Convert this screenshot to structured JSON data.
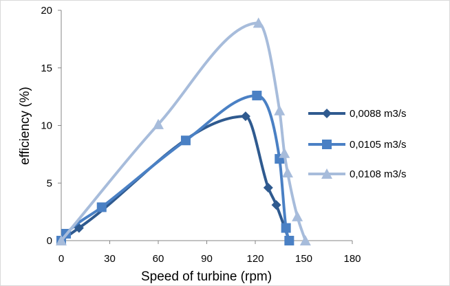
{
  "chart_data": {
    "type": "line",
    "title": "",
    "xlabel": "Speed of turbine  (rpm)",
    "ylabel": "efficiency (%)",
    "xlim": [
      0,
      180
    ],
    "ylim": [
      0,
      20
    ],
    "xticks": [
      "0",
      "30",
      "60",
      "90",
      "120",
      "150",
      "180"
    ],
    "yticks": [
      "0",
      "5",
      "10",
      "15",
      "20"
    ],
    "grid": false,
    "legend_position": "right",
    "series": [
      {
        "name": "0,0088 m3/s",
        "color": "#2f5a8f",
        "marker": "diamond",
        "x": [
          0,
          11,
          114,
          128,
          133,
          141
        ],
        "y": [
          0,
          1.1,
          10.8,
          4.6,
          3.1,
          0
        ]
      },
      {
        "name": "0,0105 m3/s",
        "color": "#4a80c4",
        "marker": "square",
        "x": [
          0,
          3,
          25,
          77,
          121,
          135,
          139,
          141
        ],
        "y": [
          0,
          0.6,
          2.9,
          8.7,
          12.6,
          7.1,
          1.1,
          0
        ]
      },
      {
        "name": "0,0108 m3/s",
        "color": "#a7bcdb",
        "marker": "triangle",
        "x": [
          0,
          60,
          122,
          135,
          138,
          140,
          146,
          151
        ],
        "y": [
          0,
          10.1,
          18.9,
          11.3,
          7.6,
          5.9,
          2.1,
          0
        ]
      }
    ]
  }
}
